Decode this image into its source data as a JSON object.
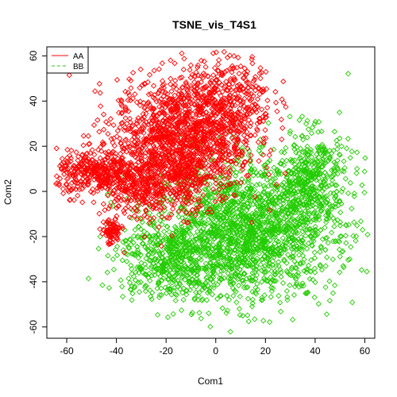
{
  "colors": {
    "AA": "#ff0000",
    "BB": "#22cc00",
    "frame": "#000000"
  },
  "chart_data": {
    "type": "scatter",
    "title": "TSNE_vis_T4S1",
    "xlabel": "Com1",
    "ylabel": "Com2",
    "xlim": [
      -68,
      64
    ],
    "ylim": [
      -65,
      64
    ],
    "xticks": [
      -60,
      -40,
      -20,
      0,
      20,
      40,
      60
    ],
    "yticks": [
      -60,
      -40,
      -20,
      0,
      20,
      40,
      60
    ],
    "grid": false,
    "marker": "diamond-open",
    "legend": {
      "placement": "top-left",
      "entries": [
        {
          "name": "AA",
          "color": "#ff0000",
          "style": "solid"
        },
        {
          "name": "BB",
          "color": "#22cc00",
          "style": "dashed"
        }
      ]
    },
    "series": [
      {
        "name": "AA",
        "color": "#ff0000",
        "points_approx": 2500,
        "clusters": [
          {
            "cx": -15,
            "cy": 22,
            "sx": 13,
            "sy": 14,
            "weight": 0.55
          },
          {
            "cx": 5,
            "cy": 40,
            "sx": 9,
            "sy": 10,
            "weight": 0.15
          },
          {
            "cx": -48,
            "cy": 8,
            "sx": 8,
            "sy": 5,
            "weight": 0.14
          },
          {
            "cx": -30,
            "cy": 2,
            "sx": 7,
            "sy": 6,
            "weight": 0.1
          },
          {
            "cx": -42,
            "cy": -18,
            "sx": 2,
            "sy": 3,
            "weight": 0.03
          },
          {
            "cx": -13,
            "cy": 8,
            "sx": 4,
            "sy": 12,
            "weight": 0.03
          }
        ]
      },
      {
        "name": "BB",
        "color": "#22cc00",
        "points_approx": 2600,
        "clusters": [
          {
            "cx": 12,
            "cy": -18,
            "sx": 18,
            "sy": 15,
            "weight": 0.68
          },
          {
            "cx": -20,
            "cy": -30,
            "sx": 10,
            "sy": 9,
            "weight": 0.16
          },
          {
            "cx": 38,
            "cy": 5,
            "sx": 8,
            "sy": 11,
            "weight": 0.16
          }
        ]
      }
    ]
  }
}
